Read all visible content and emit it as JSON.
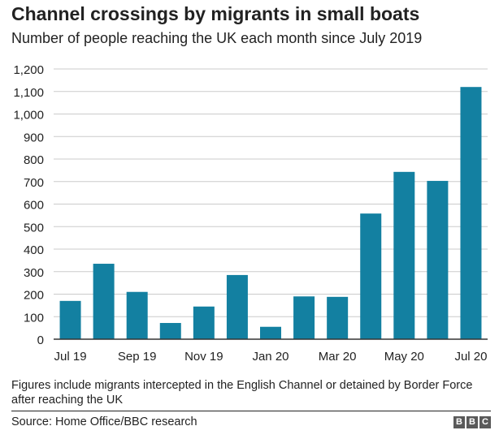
{
  "header": {
    "title": "Channel crossings by migrants in small boats",
    "subtitle": "Number of people reaching the UK each month since July 2019"
  },
  "footer": {
    "footnote": "Figures include migrants intercepted in the English Channel or detained by Border Force after reaching the UK",
    "source": "Source: Home Office/BBC research",
    "logo_letters": [
      "B",
      "B",
      "C"
    ]
  },
  "colors": {
    "bar": "#1380A1",
    "grid": "#cbcbcb",
    "axis": "#333333",
    "text": "#222222"
  },
  "chart_data": {
    "type": "bar",
    "title": "Channel crossings by migrants in small boats",
    "subtitle": "Number of people reaching the UK each month since July 2019",
    "xlabel": "",
    "ylabel": "",
    "ylim": [
      0,
      1200
    ],
    "yticks": [
      0,
      100,
      200,
      300,
      400,
      500,
      600,
      700,
      800,
      900,
      1000,
      1100,
      1200
    ],
    "ytick_labels": [
      "0",
      "100",
      "200",
      "300",
      "400",
      "500",
      "600",
      "700",
      "800",
      "900",
      "1,000",
      "1,100",
      "1,200"
    ],
    "categories": [
      "Jul 19",
      "Aug 19",
      "Sep 19",
      "Oct 19",
      "Nov 19",
      "Dec 19",
      "Jan 20",
      "Feb 20",
      "Mar 20",
      "Apr 20",
      "May 20",
      "Jun 20",
      "Jul 20"
    ],
    "xtick_labels": [
      "Jul 19",
      "",
      "Sep 19",
      "",
      "Nov 19",
      "",
      "Jan 20",
      "",
      "Mar 20",
      "",
      "May 20",
      "",
      "Jul 20"
    ],
    "values": [
      170,
      335,
      210,
      72,
      145,
      285,
      55,
      190,
      188,
      558,
      743,
      703,
      1120
    ],
    "grid": true,
    "legend": "none"
  }
}
